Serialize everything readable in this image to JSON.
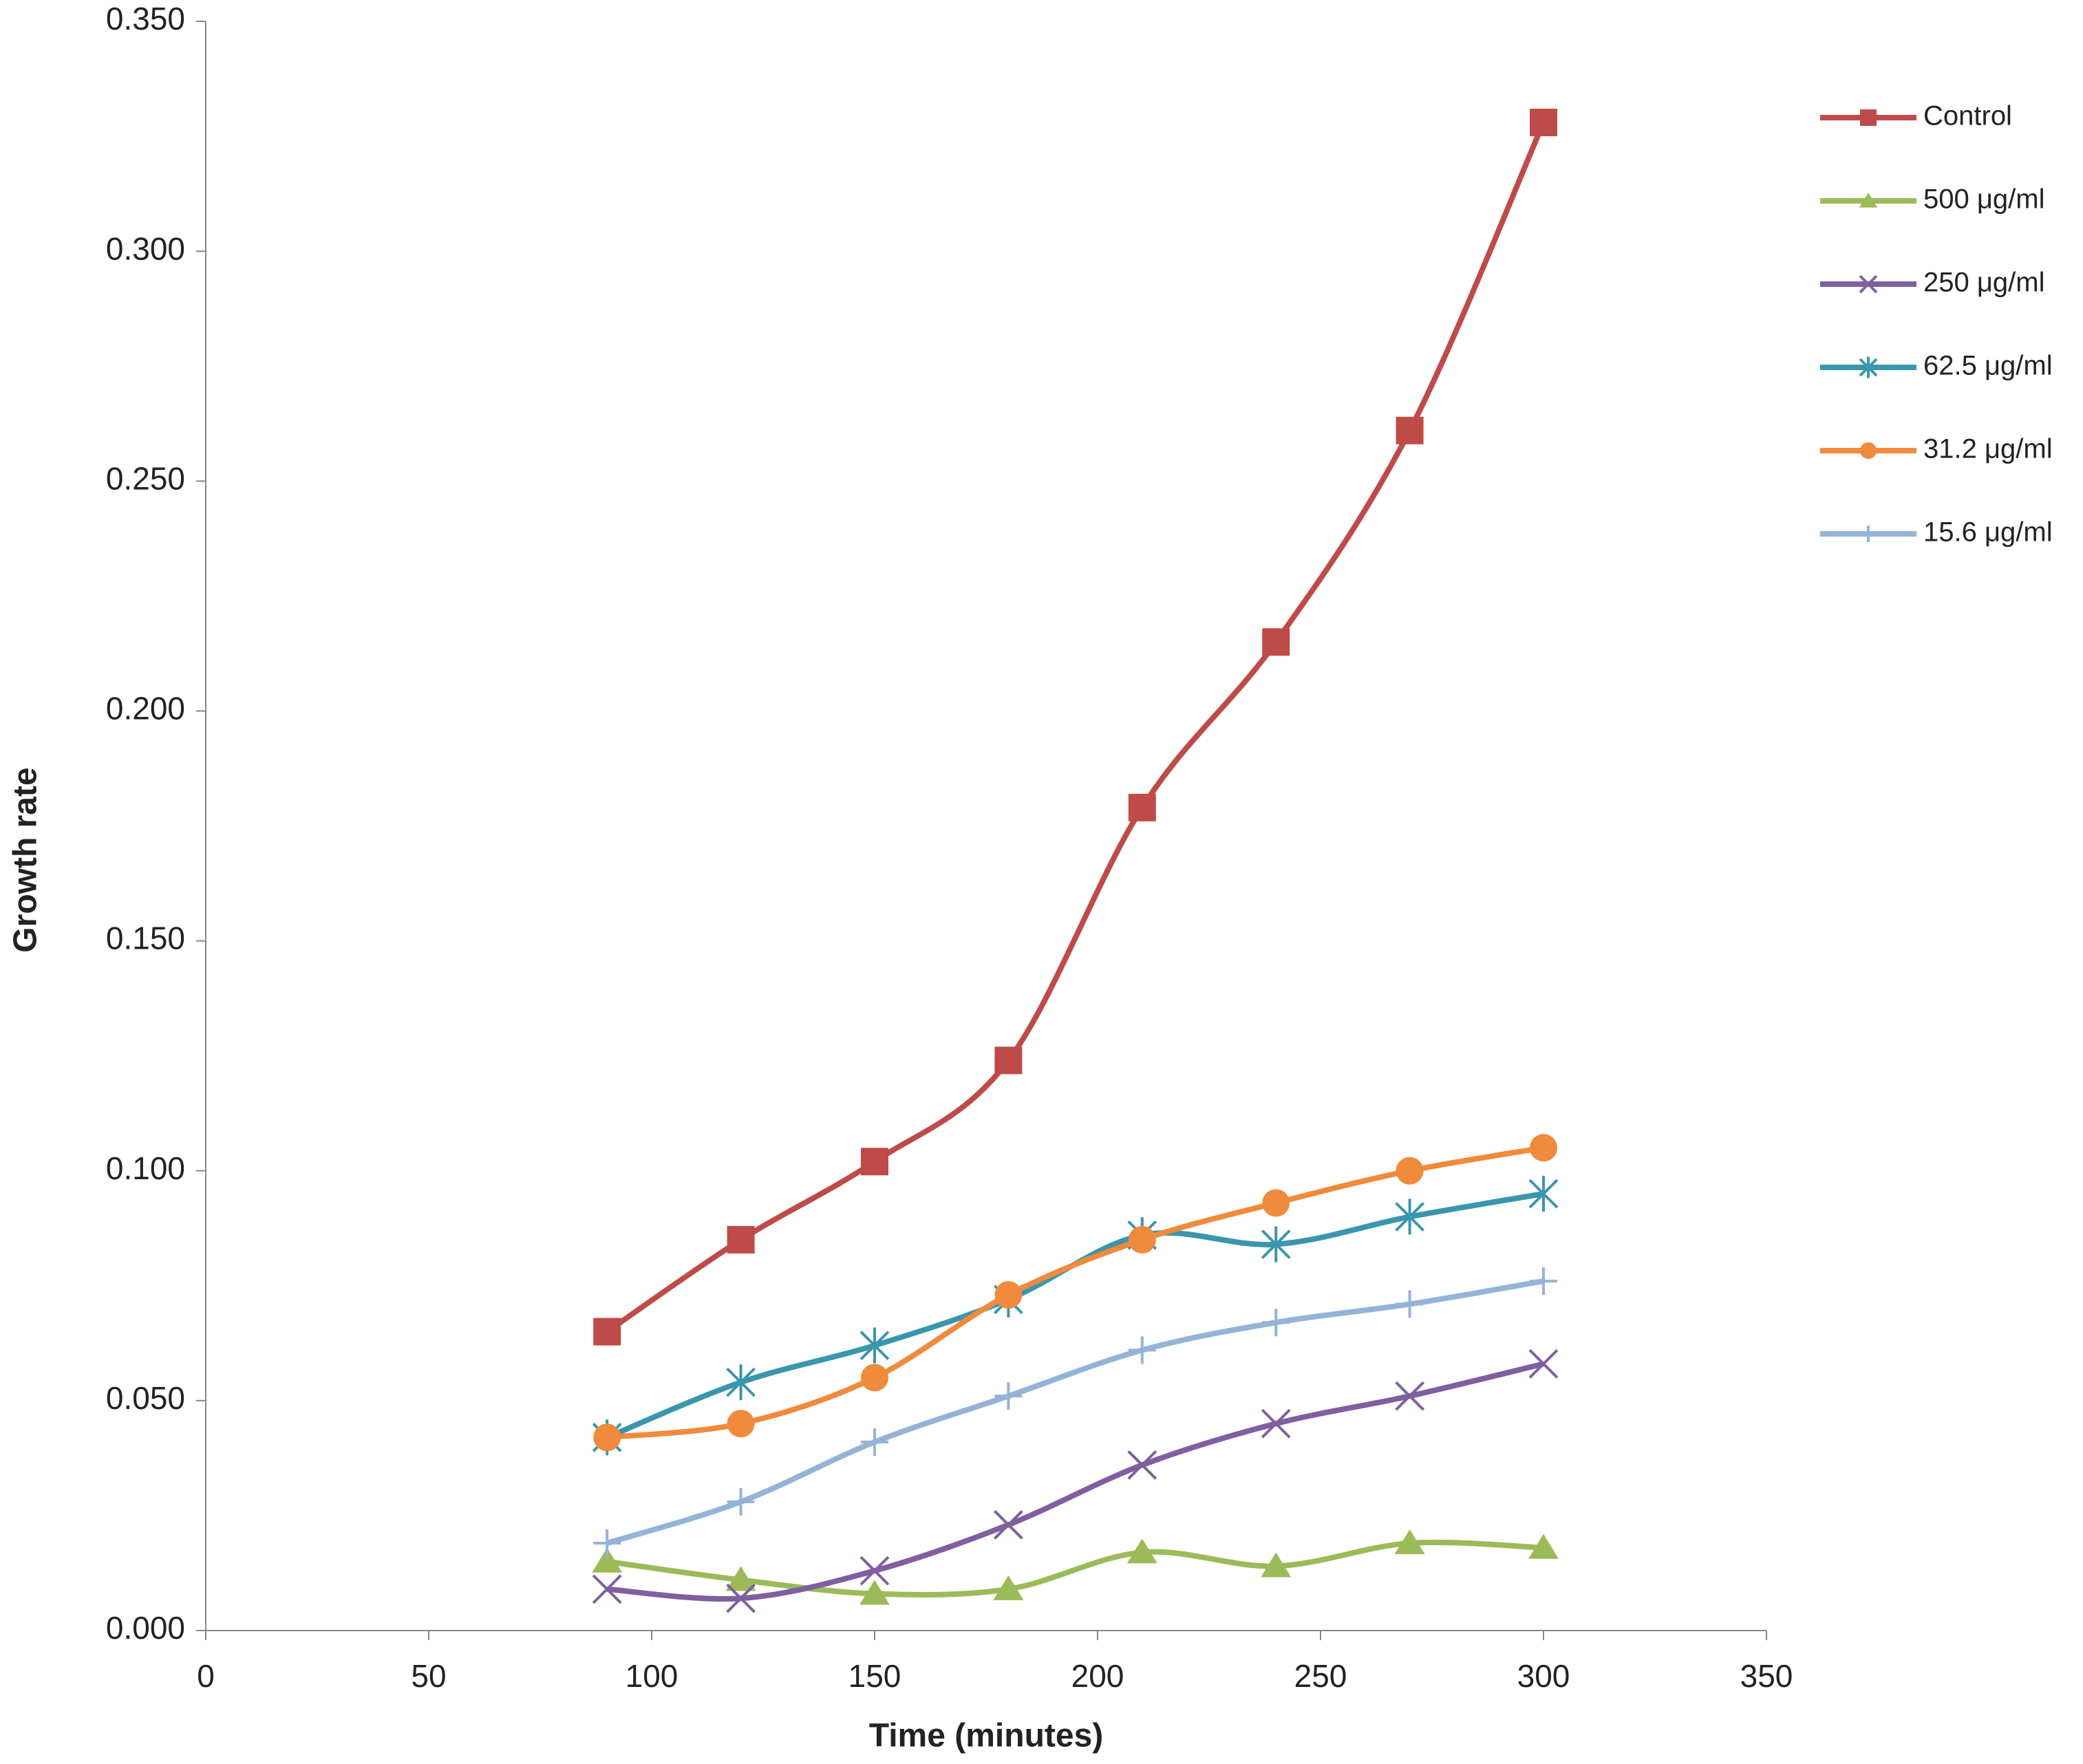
{
  "chart_data": {
    "type": "line",
    "x_label": "Time (minutes)",
    "y_label": "Growth rate",
    "x": [
      90,
      120,
      150,
      180,
      210,
      240,
      270,
      300
    ],
    "xlim": [
      0,
      350
    ],
    "xticks": [
      0,
      50,
      100,
      150,
      200,
      250,
      300,
      350
    ],
    "ylim": [
      0,
      0.35
    ],
    "yticks": [
      {
        "value": 0,
        "label": "0.000"
      },
      {
        "value": 0.05,
        "label": "0.050"
      },
      {
        "value": 0.1,
        "label": "0.100"
      },
      {
        "value": 0.15,
        "label": "0.150"
      },
      {
        "value": 0.2,
        "label": "0.200"
      },
      {
        "value": 0.25,
        "label": "0.250"
      },
      {
        "value": 0.3,
        "label": "0.300"
      },
      {
        "value": 0.35,
        "label": "0.350"
      }
    ],
    "grid": false,
    "smooth": true,
    "legend": "right",
    "series": [
      {
        "name": "Control",
        "color": "#be4b48",
        "marker": "square",
        "values": [
          0.065,
          0.085,
          0.102,
          0.124,
          0.179,
          0.215,
          0.261,
          0.328
        ]
      },
      {
        "name": "500 μg/ml",
        "color": "#9bbb59",
        "marker": "triangle",
        "values": [
          0.015,
          0.011,
          0.008,
          0.009,
          0.017,
          0.014,
          0.019,
          0.018
        ]
      },
      {
        "name": "250 μg/ml",
        "color": "#7f5fa0",
        "marker": "x",
        "values": [
          0.009,
          0.007,
          0.013,
          0.023,
          0.036,
          0.045,
          0.051,
          0.058
        ]
      },
      {
        "name": "62.5 μg/ml",
        "color": "#3a96ad",
        "marker": "star",
        "values": [
          0.042,
          0.054,
          0.062,
          0.072,
          0.086,
          0.084,
          0.09,
          0.095
        ]
      },
      {
        "name": "31.2 μg/ml",
        "color": "#f08a3c",
        "marker": "circle",
        "values": [
          0.042,
          0.045,
          0.055,
          0.073,
          0.085,
          0.093,
          0.1,
          0.105
        ]
      },
      {
        "name": "15.6 μg/ml",
        "color": "#95b3d7",
        "marker": "plus",
        "values": [
          0.019,
          0.028,
          0.041,
          0.051,
          0.061,
          0.067,
          0.071,
          0.076
        ]
      }
    ]
  }
}
